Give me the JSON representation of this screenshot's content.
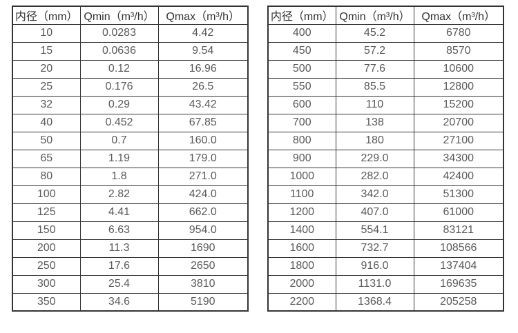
{
  "tables": [
    {
      "name": "small-diameters",
      "headers": [
        "内径（mm）",
        "Qmin（m³/h）",
        "Qmax（m³/h）"
      ],
      "rows": [
        [
          "10",
          "0.0283",
          "4.42"
        ],
        [
          "15",
          "0.0636",
          "9.54"
        ],
        [
          "20",
          "0.12",
          "16.96"
        ],
        [
          "25",
          "0.176",
          "26.5"
        ],
        [
          "32",
          "0.29",
          "43.42"
        ],
        [
          "40",
          "0.452",
          "67.85"
        ],
        [
          "50",
          "0.7",
          "160.0"
        ],
        [
          "65",
          "1.19",
          "179.0"
        ],
        [
          "80",
          "1.8",
          "271.0"
        ],
        [
          "100",
          "2.82",
          "424.0"
        ],
        [
          "125",
          "4.41",
          "662.0"
        ],
        [
          "150",
          "6.63",
          "954.0"
        ],
        [
          "200",
          "11.3",
          "1690"
        ],
        [
          "250",
          "17.6",
          "2650"
        ],
        [
          "300",
          "25.4",
          "3810"
        ],
        [
          "350",
          "34.6",
          "5190"
        ]
      ]
    },
    {
      "name": "large-diameters",
      "headers": [
        "内径（mm）",
        "Qmin（m³/h）",
        "Qmax（m³/h）"
      ],
      "rows": [
        [
          "400",
          "45.2",
          "6780"
        ],
        [
          "450",
          "57.2",
          "8570"
        ],
        [
          "500",
          "77.6",
          "10600"
        ],
        [
          "550",
          "85.5",
          "12800"
        ],
        [
          "600",
          "110",
          "15200"
        ],
        [
          "700",
          "138",
          "20700"
        ],
        [
          "800",
          "180",
          "27100"
        ],
        [
          "900",
          "229.0",
          "34300"
        ],
        [
          "1000",
          "282.0",
          "42400"
        ],
        [
          "1100",
          "342.0",
          "51300"
        ],
        [
          "1200",
          "407.0",
          "61000"
        ],
        [
          "1400",
          "554.1",
          "83121"
        ],
        [
          "1600",
          "732.7",
          "108566"
        ],
        [
          "1800",
          "916.0",
          "137404"
        ],
        [
          "2000",
          "1131.0",
          "169635"
        ],
        [
          "2200",
          "1368.4",
          "205258"
        ]
      ]
    }
  ],
  "column_semantics": [
    "diameter",
    "qmin",
    "qmax"
  ],
  "colors": {
    "border": "#333333",
    "header_text": "#333333",
    "cell_text": "#595959",
    "background": "#ffffff"
  }
}
